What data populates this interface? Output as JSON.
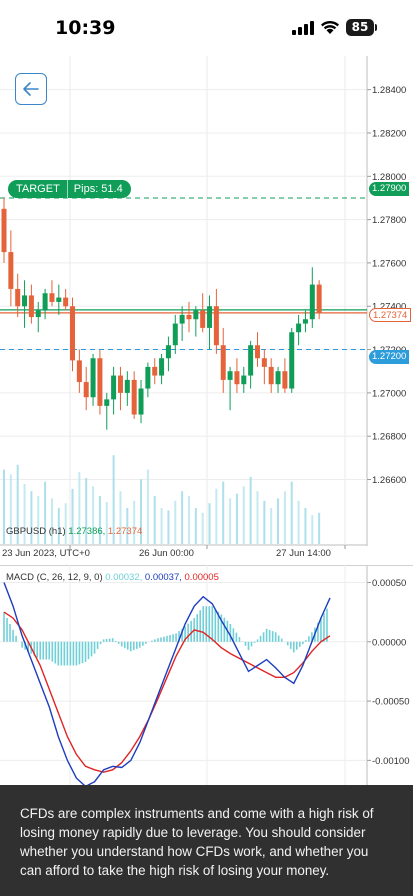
{
  "status_bar": {
    "time": "10:39",
    "battery": "85",
    "icons": [
      "signal-icon",
      "wifi-icon",
      "battery-icon"
    ]
  },
  "nav": {
    "back_icon": "arrow-left-icon"
  },
  "colors": {
    "bull": "#0f9d58",
    "bear": "#e5633a",
    "blue_line": "#2d9cdb",
    "macd_line": "#1c3dbf",
    "signal_line": "#e02424",
    "histogram": "#6fd0d8",
    "disclaimer_bg": "#303030"
  },
  "chart": {
    "target_label": "TARGET",
    "pips_label": "Pips: 51.4",
    "price_tags": {
      "target": "1.27900",
      "current": "1.27374",
      "blue": "1.27200"
    },
    "legend": {
      "symbol": "GBPUSD (h1)",
      "bid": "1.27386,",
      "ask": "1.27374"
    },
    "dates": [
      "23 Jun 2023, UTC+0",
      "26 Jun 00:00",
      "27 Jun 14:00"
    ]
  },
  "chart_data": [
    {
      "type": "candlestick",
      "title": "",
      "series_name": "GBPUSD (h1)",
      "y_ticks": [
        "1.28400",
        "1.28200",
        "1.28000",
        "1.27800",
        "1.27600",
        "1.27400",
        "1.27200",
        "1.27000",
        "1.26800",
        "1.26600"
      ],
      "x_labels": [
        "23 Jun 2023, UTC+0",
        "26 Jun 00:00",
        "27 Jun 14:00"
      ],
      "ylim": [
        1.2645,
        1.285
      ],
      "horizontal_lines": [
        {
          "label": "TARGET",
          "value": 1.279
        },
        {
          "label": "current",
          "value": 1.27374
        },
        {
          "label": "level",
          "value": 1.272
        }
      ],
      "candles": [
        [
          1.2785,
          1.279,
          1.276,
          1.2765
        ],
        [
          1.2765,
          1.2775,
          1.274,
          1.2748
        ],
        [
          1.2748,
          1.2755,
          1.2735,
          1.274
        ],
        [
          1.274,
          1.2752,
          1.273,
          1.2745
        ],
        [
          1.2745,
          1.275,
          1.2732,
          1.2735
        ],
        [
          1.2735,
          1.2742,
          1.2728,
          1.2738
        ],
        [
          1.2738,
          1.2748,
          1.2734,
          1.2746
        ],
        [
          1.2746,
          1.2752,
          1.274,
          1.2742
        ],
        [
          1.2742,
          1.275,
          1.2736,
          1.2744
        ],
        [
          1.2744,
          1.2748,
          1.2738,
          1.274
        ],
        [
          1.274,
          1.2744,
          1.271,
          1.2715
        ],
        [
          1.2715,
          1.272,
          1.27,
          1.2705
        ],
        [
          1.2705,
          1.2712,
          1.2692,
          1.2698
        ],
        [
          1.2698,
          1.2718,
          1.2694,
          1.2716
        ],
        [
          1.2716,
          1.272,
          1.269,
          1.2694
        ],
        [
          1.2694,
          1.27,
          1.2683,
          1.2697
        ],
        [
          1.2697,
          1.2712,
          1.269,
          1.2708
        ],
        [
          1.2708,
          1.2712,
          1.2692,
          1.27
        ],
        [
          1.27,
          1.271,
          1.2694,
          1.2706
        ],
        [
          1.2706,
          1.271,
          1.2688,
          1.269
        ],
        [
          1.269,
          1.2706,
          1.2686,
          1.2702
        ],
        [
          1.2702,
          1.2714,
          1.2698,
          1.2712
        ],
        [
          1.2712,
          1.2716,
          1.2704,
          1.2708
        ],
        [
          1.2708,
          1.2718,
          1.2704,
          1.2716
        ],
        [
          1.2716,
          1.2726,
          1.271,
          1.2722
        ],
        [
          1.2722,
          1.2736,
          1.2718,
          1.2732
        ],
        [
          1.2732,
          1.274,
          1.2724,
          1.2736
        ],
        [
          1.2736,
          1.2742,
          1.2728,
          1.2734
        ],
        [
          1.2734,
          1.274,
          1.2726,
          1.2738
        ],
        [
          1.2738,
          1.2746,
          1.2728,
          1.273
        ],
        [
          1.273,
          1.2745,
          1.272,
          1.274
        ],
        [
          1.274,
          1.2748,
          1.2718,
          1.2722
        ],
        [
          1.2722,
          1.273,
          1.27,
          1.2706
        ],
        [
          1.2706,
          1.2712,
          1.2692,
          1.271
        ],
        [
          1.271,
          1.2716,
          1.27,
          1.2704
        ],
        [
          1.2704,
          1.2712,
          1.27,
          1.2708
        ],
        [
          1.2708,
          1.2724,
          1.2702,
          1.2722
        ],
        [
          1.2722,
          1.2728,
          1.2712,
          1.2716
        ],
        [
          1.2716,
          1.272,
          1.2704,
          1.2712
        ],
        [
          1.2712,
          1.2716,
          1.27,
          1.2704
        ],
        [
          1.2704,
          1.2712,
          1.27,
          1.271
        ],
        [
          1.271,
          1.2716,
          1.27,
          1.2702
        ],
        [
          1.2702,
          1.273,
          1.27,
          1.2728
        ],
        [
          1.2728,
          1.2736,
          1.2722,
          1.2732
        ],
        [
          1.2732,
          1.2738,
          1.2728,
          1.2734
        ],
        [
          1.2734,
          1.2758,
          1.273,
          1.275
        ],
        [
          1.275,
          1.2752,
          1.2734,
          1.2737
        ]
      ],
      "volume": [
        62,
        58,
        66,
        50,
        44,
        40,
        52,
        38,
        30,
        34,
        46,
        60,
        55,
        48,
        40,
        35,
        74,
        44,
        30,
        36,
        54,
        62,
        40,
        30,
        28,
        36,
        44,
        40,
        30,
        26,
        34,
        46,
        52,
        38,
        42,
        48,
        56,
        44,
        36,
        30,
        38,
        44,
        52,
        36,
        30,
        24,
        26
      ]
    },
    {
      "type": "line",
      "title": "MACD (C, 26, 12, 9, 0)",
      "y_ticks": [
        "0.00050",
        "0.00000",
        "-0.00050",
        "-0.00100"
      ],
      "ylim": [
        -0.00125,
        0.00058
      ],
      "legend": [
        "0.00032,",
        "0.00037,",
        "0.00005"
      ],
      "series": [
        {
          "name": "MACD",
          "values": [
            0.0005,
            0.0003,
            5e-05,
            -0.00015,
            -0.00035,
            -0.00055,
            -0.0008,
            -0.001,
            -0.00115,
            -0.00122,
            -0.00118,
            -0.00108,
            -0.00105,
            -0.00106,
            -0.001,
            -0.00085,
            -0.00065,
            -0.00045,
            -0.00025,
            -5e-05,
            0.00015,
            0.0003,
            0.00038,
            0.00032,
            0.00018,
            5e-05,
            -0.0001,
            -0.00025,
            -0.0002,
            -0.00015,
            -0.00022,
            -0.0003,
            -0.00035,
            -0.0002,
            0.0,
            0.0002,
            0.00037
          ]
        },
        {
          "name": "Signal",
          "values": [
            0.00025,
            0.0002,
            0.0001,
            -5e-05,
            -0.0002,
            -0.0004,
            -0.0006,
            -0.0008,
            -0.00095,
            -0.00105,
            -0.00108,
            -0.0011,
            -0.00108,
            -0.00102,
            -0.00092,
            -0.0008,
            -0.00065,
            -0.00048,
            -0.0003,
            -0.00012,
            2e-05,
            0.0001,
            8e-05,
            2e-05,
            -5e-05,
            -0.0001,
            -0.00014,
            -0.00018,
            -0.00022,
            -0.00026,
            -0.0003,
            -0.0003,
            -0.00026,
            -0.00018,
            -8e-05,
            0.0,
            5e-05
          ]
        },
        {
          "name": "Histogram",
          "values": [
            0.00025,
            0.0001,
            -5e-05,
            -0.0001,
            -0.00015,
            -0.00015,
            -0.0002,
            -0.0002,
            -0.0002,
            -0.00017,
            -0.0001,
            2e-05,
            3e-05,
            -4e-05,
            -8e-05,
            -5e-05,
            0.0,
            3e-05,
            5e-05,
            7e-05,
            0.00013,
            0.0002,
            0.0003,
            0.0003,
            0.00023,
            0.00015,
            4e-05,
            -7e-05,
            2e-05,
            0.00011,
            8e-05,
            0.0,
            -9e-05,
            -2e-05,
            8e-05,
            0.0002,
            0.00032
          ]
        }
      ]
    }
  ],
  "disclaimer": "CFDs are complex instruments and come with a high risk of losing money rapidly due to leverage. You should consider whether you understand how CFDs work, and whether you can afford to take the high risk of losing your money."
}
